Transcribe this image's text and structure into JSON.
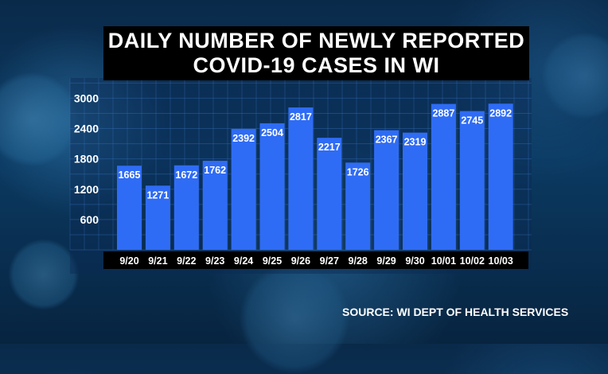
{
  "chart_data": {
    "type": "bar",
    "title": [
      "DAILY NUMBER OF NEWLY REPORTED",
      "COVID-19 CASES IN WI"
    ],
    "categories": [
      "9/20",
      "9/21",
      "9/22",
      "9/23",
      "9/24",
      "9/25",
      "9/26",
      "9/27",
      "9/28",
      "9/29",
      "9/30",
      "10/01",
      "10/02",
      "10/03"
    ],
    "values": [
      1665,
      1271,
      1672,
      1762,
      2392,
      2504,
      2817,
      2217,
      1726,
      2367,
      2319,
      2887,
      2745,
      2892
    ],
    "yticks": [
      600,
      1200,
      1800,
      2400,
      3000
    ],
    "ylim": [
      0,
      3400
    ],
    "grid": true,
    "bar_color": "#2f6cf5",
    "source": "SOURCE: WI DEPT OF HEALTH SERVICES"
  }
}
